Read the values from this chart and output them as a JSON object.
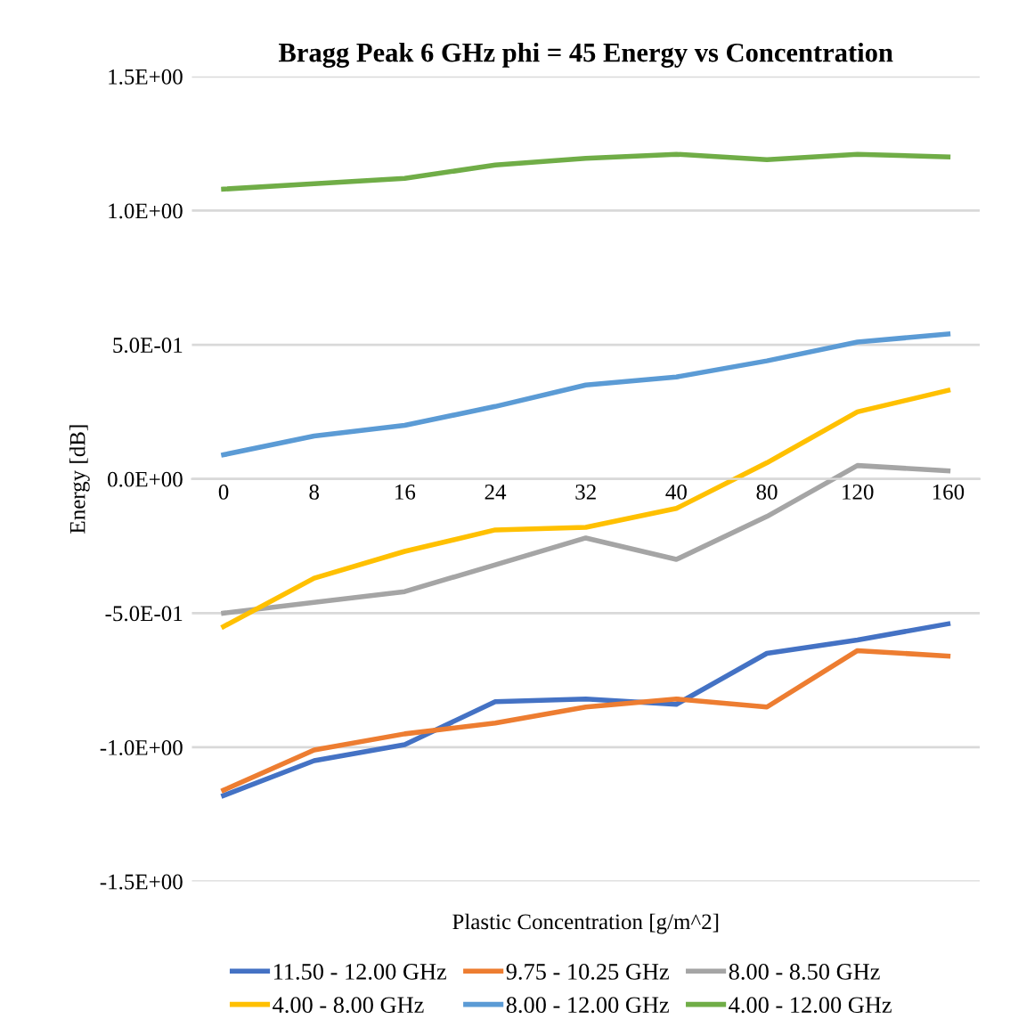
{
  "chart_data": {
    "type": "line",
    "title": "Bragg Peak 6 GHz phi = 45 Energy vs Concentration",
    "xlabel": "Plastic Concentration [g/m^2]",
    "ylabel": "Energy [dB]",
    "categories": [
      "0",
      "8",
      "16",
      "24",
      "32",
      "40",
      "80",
      "120",
      "160"
    ],
    "ylim": [
      -1.5,
      1.5
    ],
    "yticks": [
      {
        "value": -1.5,
        "label": "-1.5E+00"
      },
      {
        "value": -1.0,
        "label": "-1.0E+00"
      },
      {
        "value": -0.5,
        "label": "-5.0E-01"
      },
      {
        "value": 0,
        "label": "0.0E+00"
      },
      {
        "value": 0.5,
        "label": "5.0E-01"
      },
      {
        "value": 1.0,
        "label": "1.0E+00"
      },
      {
        "value": 1.5,
        "label": "1.5E+00"
      }
    ],
    "grid": "y",
    "legend": "bottom",
    "marker": "none",
    "line_style": "solid",
    "series": [
      {
        "name": "11.50 - 12.00 GHz",
        "color": "#4472c4",
        "values": [
          -1.18,
          -1.05,
          -0.99,
          -0.83,
          -0.82,
          -0.84,
          -0.65,
          -0.6,
          -0.54
        ]
      },
      {
        "name": "9.75 - 10.25 GHz",
        "color": "#ed7d31",
        "values": [
          -1.16,
          -1.01,
          -0.95,
          -0.91,
          -0.85,
          -0.82,
          -0.85,
          -0.64,
          -0.66
        ]
      },
      {
        "name": "8.00 - 8.50 GHz",
        "color": "#a5a5a5",
        "values": [
          -0.5,
          -0.46,
          -0.42,
          -0.32,
          -0.22,
          -0.3,
          -0.14,
          0.05,
          0.03
        ]
      },
      {
        "name": "4.00 - 8.00 GHz",
        "color": "#ffc000",
        "values": [
          -0.55,
          -0.37,
          -0.27,
          -0.19,
          -0.18,
          -0.11,
          0.06,
          0.25,
          0.33
        ]
      },
      {
        "name": "8.00 - 12.00 GHz",
        "color": "#5b9bd5",
        "values": [
          0.09,
          0.16,
          0.2,
          0.27,
          0.35,
          0.38,
          0.44,
          0.51,
          0.54
        ]
      },
      {
        "name": "4.00 - 12.00 GHz",
        "color": "#70ad47",
        "values": [
          1.08,
          1.1,
          1.12,
          1.17,
          1.195,
          1.21,
          1.19,
          1.21,
          1.2
        ]
      }
    ]
  }
}
